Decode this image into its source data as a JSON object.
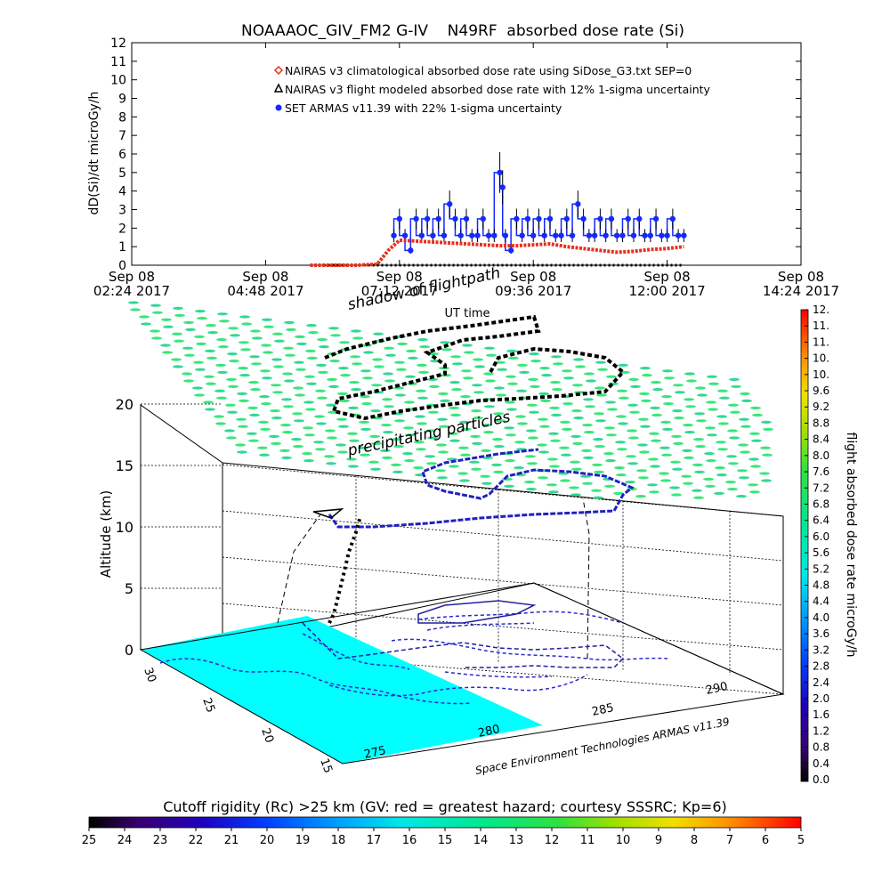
{
  "title": "NOAAAOC_GIV_FM2 G-IV    N49RF  absorbed dose rate (Si)",
  "chart_data": [
    {
      "type": "line",
      "ylabel": "dD(Si)/dt microGy/h",
      "xlabel": "UT time",
      "ylim": [
        0,
        12
      ],
      "yticks": [
        "0",
        "1",
        "2",
        "3",
        "4",
        "5",
        "6",
        "7",
        "8",
        "9",
        "10",
        "11",
        "12"
      ],
      "xticks": [
        {
          "line1": "Sep 08",
          "line2": "02:24 2017",
          "hours": 2.4
        },
        {
          "line1": "Sep 08",
          "line2": "04:48 2017",
          "hours": 4.8
        },
        {
          "line1": "Sep 08",
          "line2": "07:12 2017",
          "hours": 7.2
        },
        {
          "line1": "Sep 08",
          "line2": "09:36 2017",
          "hours": 9.6
        },
        {
          "line1": "Sep 08",
          "line2": "12:00 2017",
          "hours": 12.0
        },
        {
          "line1": "Sep 08",
          "line2": "14:24 2017",
          "hours": 14.4
        }
      ],
      "xlim_hours": [
        2.4,
        14.4
      ],
      "legend": [
        {
          "label": "NAIRAS v3 climatological absorbed dose rate using SiDose_G3.txt SEP=0",
          "marker": "diamond",
          "color": "#e8301c"
        },
        {
          "label": "NAIRAS v3 flight modeled absorbed dose rate with 12% 1-sigma uncertainty",
          "marker": "triangle",
          "color": "#000000"
        },
        {
          "label": "SET ARMAS v11.39 with 22% 1-sigma uncertainty",
          "marker": "circle",
          "color": "#1428ff"
        }
      ],
      "series": [
        {
          "name": "NAIRAS v3 climatological absorbed dose rate using SiDose_G3.txt SEP=0",
          "hours": [
            5.6,
            6.0,
            6.4,
            6.8,
            7.0,
            7.2,
            7.5,
            7.8,
            8.1,
            8.4,
            8.7,
            9.0,
            9.3,
            9.6,
            9.9,
            10.2,
            10.5,
            10.8,
            11.1,
            11.4,
            11.7,
            12.0,
            12.3
          ],
          "values": [
            0,
            0,
            0,
            0.05,
            0.8,
            1.35,
            1.3,
            1.25,
            1.2,
            1.15,
            1.1,
            1.05,
            1.05,
            1.1,
            1.15,
            1.0,
            0.9,
            0.8,
            0.7,
            0.75,
            0.85,
            0.9,
            1.0
          ]
        },
        {
          "name": "NAIRAS v3 flight modeled absorbed dose rate with 12% 1-sigma uncertainty",
          "hours": [
            5.6,
            6.0,
            6.4,
            6.8,
            7.0,
            7.2,
            7.6,
            8.0,
            8.4,
            8.8,
            9.2,
            9.6,
            10.0,
            10.4,
            10.8,
            11.2,
            11.6,
            12.0,
            12.3
          ],
          "values": [
            0,
            0,
            0,
            0,
            0,
            0,
            0,
            0,
            0,
            0,
            0,
            0,
            0,
            0,
            0,
            0,
            0,
            0,
            0
          ]
        },
        {
          "name": "SET ARMAS v11.39 with 22% 1-sigma uncertainty",
          "hours": [
            7.1,
            7.2,
            7.3,
            7.4,
            7.5,
            7.6,
            7.7,
            7.8,
            7.9,
            8.0,
            8.1,
            8.2,
            8.3,
            8.4,
            8.5,
            8.6,
            8.7,
            8.8,
            8.9,
            9.0,
            9.05,
            9.1,
            9.2,
            9.3,
            9.4,
            9.5,
            9.6,
            9.7,
            9.8,
            9.9,
            10.0,
            10.1,
            10.2,
            10.3,
            10.4,
            10.5,
            10.6,
            10.7,
            10.8,
            10.9,
            11.0,
            11.1,
            11.2,
            11.3,
            11.4,
            11.5,
            11.6,
            11.7,
            11.8,
            11.9,
            12.0,
            12.1,
            12.2,
            12.3
          ],
          "values": [
            1.6,
            2.5,
            1.6,
            0.8,
            2.5,
            1.6,
            2.5,
            1.6,
            2.5,
            1.6,
            3.3,
            2.5,
            1.6,
            2.5,
            1.6,
            1.6,
            2.5,
            1.6,
            1.6,
            5.0,
            4.2,
            1.6,
            0.8,
            2.5,
            1.6,
            2.5,
            1.6,
            2.5,
            1.6,
            2.5,
            1.6,
            1.6,
            2.5,
            1.6,
            3.3,
            2.5,
            1.6,
            1.6,
            2.5,
            1.6,
            2.5,
            1.6,
            1.6,
            2.5,
            1.6,
            2.5,
            1.6,
            1.6,
            2.5,
            1.6,
            1.6,
            2.5,
            1.6,
            1.6
          ]
        }
      ]
    },
    {
      "type": "3d-trajectory",
      "zlabel": "Altitude (km)",
      "zticks": [
        "0",
        "5",
        "10",
        "15",
        "20"
      ],
      "lat_ticks": [
        "30",
        "25",
        "20",
        "15"
      ],
      "lon_ticks": [
        "275",
        "280",
        "285",
        "290"
      ],
      "annotations": [
        "shadow of flightpath",
        "precipitating particles",
        "UT time"
      ],
      "credit": "Space Environment Technologies ARMAS v11.39"
    }
  ],
  "colorbar_right": {
    "label": "flight absorbed dose rate microGy/h",
    "ticks": [
      "0.0",
      "0.4",
      "0.8",
      "1.2",
      "1.6",
      "2.0",
      "2.4",
      "2.8",
      "3.2",
      "3.6",
      "4.0",
      "4.4",
      "4.8",
      "5.2",
      "5.6",
      "6.0",
      "6.4",
      "6.8",
      "7.2",
      "7.6",
      "8.0",
      "8.4",
      "8.8",
      "9.2",
      "9.6",
      "10.",
      "10.",
      "11.",
      "11.",
      "12."
    ]
  },
  "colorbar_bottom": {
    "label": "Cutoff rigidity (Rc) >25 km (GV: red = greatest hazard; courtesy SSSRC; Kp=6)",
    "ticks": [
      "25",
      "24",
      "23",
      "22",
      "21",
      "20",
      "19",
      "18",
      "17",
      "16",
      "15",
      "14",
      "13",
      "12",
      "11",
      "10",
      "9",
      "8",
      "7",
      "6",
      "5"
    ]
  },
  "colors": {
    "nairas_clim": "#e8301c",
    "nairas_flight": "#000000",
    "armas": "#1428ff",
    "map_fill": "#00ffff",
    "rc_dots": "#32e69a"
  }
}
